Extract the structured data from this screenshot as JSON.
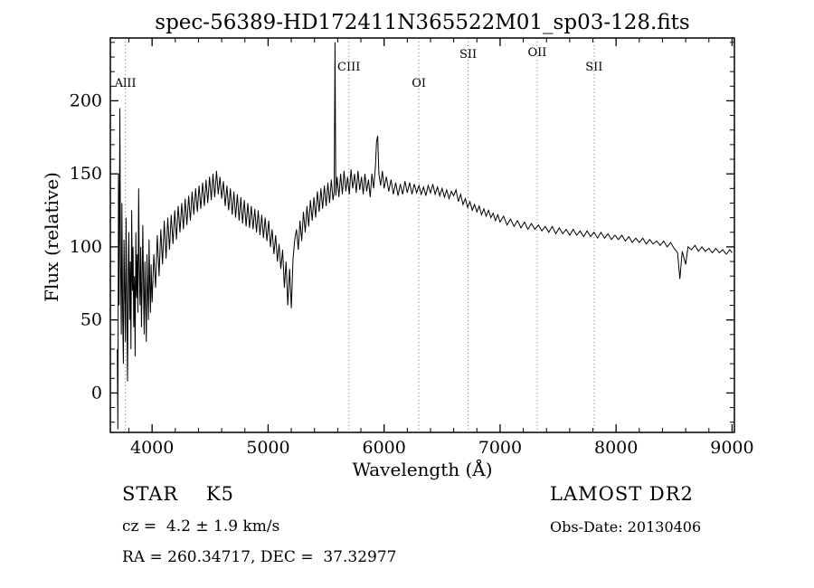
{
  "chart_data": {
    "type": "line",
    "title": "spec-56389-HD172411N365522M01_sp03-128.fits",
    "xlabel": "Wavelength (Å)",
    "ylabel": "Flux (relative)",
    "xlim": [
      3640,
      9020
    ],
    "ylim": [
      -27,
      243
    ],
    "xticks": [
      4000,
      5000,
      6000,
      7000,
      8000,
      9000
    ],
    "yticks": [
      0,
      50,
      100,
      150,
      200
    ],
    "grid": false,
    "legend": "none",
    "line_color": "#000000",
    "marker_line_style": "dotted",
    "markers": [
      {
        "label": "AlII",
        "wavelength": 3770,
        "label_y": 96
      },
      {
        "label": "CIII",
        "wavelength": 5696,
        "label_y": 78
      },
      {
        "label": "OI",
        "wavelength": 6300,
        "label_y": 96
      },
      {
        "label": "SII",
        "wavelength": 6724,
        "label_y": 64
      },
      {
        "label": "OII",
        "wavelength": 7320,
        "label_y": 62
      },
      {
        "label": "SII",
        "wavelength": 7810,
        "label_y": 78
      }
    ],
    "points": [
      [
        3700,
        30
      ],
      [
        3705,
        -25
      ],
      [
        3710,
        150
      ],
      [
        3716,
        60
      ],
      [
        3722,
        195
      ],
      [
        3728,
        90
      ],
      [
        3734,
        40
      ],
      [
        3740,
        130
      ],
      [
        3746,
        55
      ],
      [
        3752,
        20
      ],
      [
        3758,
        105
      ],
      [
        3764,
        70
      ],
      [
        3770,
        35
      ],
      [
        3776,
        120
      ],
      [
        3782,
        60
      ],
      [
        3788,
        8
      ],
      [
        3794,
        85
      ],
      [
        3800,
        110
      ],
      [
        3806,
        50
      ],
      [
        3812,
        90
      ],
      [
        3818,
        30
      ],
      [
        3824,
        125
      ],
      [
        3830,
        70
      ],
      [
        3836,
        100
      ],
      [
        3842,
        45
      ],
      [
        3848,
        80
      ],
      [
        3854,
        25
      ],
      [
        3860,
        110
      ],
      [
        3866,
        65
      ],
      [
        3872,
        95
      ],
      [
        3878,
        55
      ],
      [
        3884,
        140
      ],
      [
        3890,
        85
      ],
      [
        3896,
        60
      ],
      [
        3902,
        100
      ],
      [
        3908,
        45
      ],
      [
        3914,
        75
      ],
      [
        3920,
        115
      ],
      [
        3926,
        70
      ],
      [
        3932,
        40
      ],
      [
        3938,
        90
      ],
      [
        3944,
        60
      ],
      [
        3950,
        35
      ],
      [
        3956,
        95
      ],
      [
        3962,
        70
      ],
      [
        3968,
        50
      ],
      [
        3974,
        105
      ],
      [
        3980,
        75
      ],
      [
        3986,
        55
      ],
      [
        3992,
        88
      ],
      [
        4000,
        62
      ],
      [
        4015,
        95
      ],
      [
        4030,
        72
      ],
      [
        4045,
        108
      ],
      [
        4060,
        80
      ],
      [
        4075,
        112
      ],
      [
        4090,
        88
      ],
      [
        4105,
        118
      ],
      [
        4120,
        92
      ],
      [
        4135,
        120
      ],
      [
        4150,
        98
      ],
      [
        4165,
        122
      ],
      [
        4180,
        102
      ],
      [
        4195,
        125
      ],
      [
        4210,
        105
      ],
      [
        4225,
        128
      ],
      [
        4240,
        110
      ],
      [
        4255,
        130
      ],
      [
        4270,
        112
      ],
      [
        4285,
        133
      ],
      [
        4300,
        115
      ],
      [
        4315,
        135
      ],
      [
        4330,
        118
      ],
      [
        4345,
        138
      ],
      [
        4360,
        122
      ],
      [
        4375,
        140
      ],
      [
        4390,
        124
      ],
      [
        4405,
        142
      ],
      [
        4420,
        126
      ],
      [
        4435,
        144
      ],
      [
        4450,
        128
      ],
      [
        4465,
        146
      ],
      [
        4480,
        130
      ],
      [
        4495,
        148
      ],
      [
        4510,
        132
      ],
      [
        4525,
        150
      ],
      [
        4540,
        134
      ],
      [
        4555,
        152
      ],
      [
        4570,
        136
      ],
      [
        4585,
        148
      ],
      [
        4600,
        133
      ],
      [
        4615,
        145
      ],
      [
        4630,
        128
      ],
      [
        4645,
        142
      ],
      [
        4660,
        125
      ],
      [
        4675,
        140
      ],
      [
        4690,
        122
      ],
      [
        4705,
        138
      ],
      [
        4720,
        120
      ],
      [
        4735,
        136
      ],
      [
        4750,
        118
      ],
      [
        4765,
        134
      ],
      [
        4780,
        116
      ],
      [
        4795,
        132
      ],
      [
        4810,
        114
      ],
      [
        4825,
        130
      ],
      [
        4840,
        113
      ],
      [
        4855,
        128
      ],
      [
        4870,
        112
      ],
      [
        4885,
        126
      ],
      [
        4900,
        110
      ],
      [
        4915,
        125
      ],
      [
        4930,
        108
      ],
      [
        4945,
        122
      ],
      [
        4960,
        106
      ],
      [
        4975,
        120
      ],
      [
        4990,
        104
      ],
      [
        5005,
        118
      ],
      [
        5020,
        100
      ],
      [
        5035,
        112
      ],
      [
        5050,
        95
      ],
      [
        5065,
        108
      ],
      [
        5080,
        90
      ],
      [
        5095,
        102
      ],
      [
        5110,
        85
      ],
      [
        5125,
        98
      ],
      [
        5140,
        72
      ],
      [
        5155,
        90
      ],
      [
        5170,
        60
      ],
      [
        5185,
        85
      ],
      [
        5200,
        58
      ],
      [
        5215,
        92
      ],
      [
        5230,
        105
      ],
      [
        5245,
        112
      ],
      [
        5260,
        98
      ],
      [
        5275,
        118
      ],
      [
        5290,
        104
      ],
      [
        5305,
        124
      ],
      [
        5320,
        110
      ],
      [
        5335,
        128
      ],
      [
        5350,
        114
      ],
      [
        5365,
        132
      ],
      [
        5380,
        118
      ],
      [
        5395,
        134
      ],
      [
        5410,
        120
      ],
      [
        5425,
        138
      ],
      [
        5440,
        124
      ],
      [
        5455,
        140
      ],
      [
        5470,
        126
      ],
      [
        5485,
        142
      ],
      [
        5500,
        128
      ],
      [
        5515,
        144
      ],
      [
        5530,
        130
      ],
      [
        5545,
        146
      ],
      [
        5560,
        132
      ],
      [
        5570,
        138
      ],
      [
        5577,
        240
      ],
      [
        5584,
        135
      ],
      [
        5595,
        148
      ],
      [
        5610,
        134
      ],
      [
        5625,
        150
      ],
      [
        5640,
        136
      ],
      [
        5655,
        152
      ],
      [
        5670,
        138
      ],
      [
        5685,
        148
      ],
      [
        5700,
        136
      ],
      [
        5715,
        153
      ],
      [
        5730,
        140
      ],
      [
        5745,
        150
      ],
      [
        5760,
        137
      ],
      [
        5775,
        152
      ],
      [
        5790,
        139
      ],
      [
        5805,
        148
      ],
      [
        5820,
        136
      ],
      [
        5835,
        150
      ],
      [
        5850,
        138
      ],
      [
        5865,
        146
      ],
      [
        5880,
        134
      ],
      [
        5895,
        150
      ],
      [
        5910,
        140
      ],
      [
        5925,
        155
      ],
      [
        5935,
        172
      ],
      [
        5945,
        176
      ],
      [
        5955,
        150
      ],
      [
        5970,
        142
      ],
      [
        5985,
        152
      ],
      [
        6000,
        140
      ],
      [
        6020,
        148
      ],
      [
        6040,
        138
      ],
      [
        6060,
        146
      ],
      [
        6080,
        136
      ],
      [
        6100,
        144
      ],
      [
        6120,
        135
      ],
      [
        6140,
        143
      ],
      [
        6160,
        136
      ],
      [
        6180,
        145
      ],
      [
        6200,
        137
      ],
      [
        6220,
        144
      ],
      [
        6240,
        136
      ],
      [
        6260,
        143
      ],
      [
        6280,
        137
      ],
      [
        6300,
        142
      ],
      [
        6320,
        136
      ],
      [
        6340,
        141
      ],
      [
        6360,
        135
      ],
      [
        6380,
        142
      ],
      [
        6400,
        137
      ],
      [
        6420,
        143
      ],
      [
        6440,
        136
      ],
      [
        6460,
        141
      ],
      [
        6480,
        135
      ],
      [
        6500,
        140
      ],
      [
        6520,
        134
      ],
      [
        6540,
        139
      ],
      [
        6560,
        133
      ],
      [
        6580,
        138
      ],
      [
        6600,
        135
      ],
      [
        6620,
        139
      ],
      [
        6640,
        131
      ],
      [
        6660,
        136
      ],
      [
        6680,
        129
      ],
      [
        6700,
        133
      ],
      [
        6720,
        127
      ],
      [
        6740,
        131
      ],
      [
        6760,
        125
      ],
      [
        6780,
        129
      ],
      [
        6800,
        124
      ],
      [
        6820,
        128
      ],
      [
        6840,
        122
      ],
      [
        6860,
        126
      ],
      [
        6880,
        121
      ],
      [
        6900,
        125
      ],
      [
        6920,
        120
      ],
      [
        6940,
        123
      ],
      [
        6960,
        118
      ],
      [
        6980,
        122
      ],
      [
        7000,
        117
      ],
      [
        7030,
        121
      ],
      [
        7060,
        115
      ],
      [
        7090,
        119
      ],
      [
        7120,
        114
      ],
      [
        7150,
        118
      ],
      [
        7180,
        113
      ],
      [
        7210,
        117
      ],
      [
        7240,
        112
      ],
      [
        7270,
        116
      ],
      [
        7300,
        112
      ],
      [
        7330,
        115
      ],
      [
        7360,
        111
      ],
      [
        7390,
        114
      ],
      [
        7420,
        110
      ],
      [
        7450,
        114
      ],
      [
        7480,
        109
      ],
      [
        7510,
        113
      ],
      [
        7540,
        109
      ],
      [
        7570,
        112
      ],
      [
        7600,
        108
      ],
      [
        7630,
        112
      ],
      [
        7660,
        108
      ],
      [
        7690,
        111
      ],
      [
        7720,
        107
      ],
      [
        7750,
        111
      ],
      [
        7780,
        107
      ],
      [
        7810,
        110
      ],
      [
        7840,
        106
      ],
      [
        7870,
        110
      ],
      [
        7900,
        106
      ],
      [
        7930,
        109
      ],
      [
        7960,
        105
      ],
      [
        7990,
        108
      ],
      [
        8020,
        105
      ],
      [
        8050,
        108
      ],
      [
        8080,
        104
      ],
      [
        8110,
        107
      ],
      [
        8140,
        103
      ],
      [
        8170,
        106
      ],
      [
        8200,
        103
      ],
      [
        8230,
        106
      ],
      [
        8260,
        102
      ],
      [
        8290,
        105
      ],
      [
        8320,
        102
      ],
      [
        8350,
        104
      ],
      [
        8380,
        101
      ],
      [
        8410,
        104
      ],
      [
        8440,
        100
      ],
      [
        8470,
        103
      ],
      [
        8500,
        99
      ],
      [
        8530,
        96
      ],
      [
        8550,
        78
      ],
      [
        8570,
        97
      ],
      [
        8600,
        88
      ],
      [
        8620,
        100
      ],
      [
        8650,
        98
      ],
      [
        8680,
        101
      ],
      [
        8710,
        97
      ],
      [
        8740,
        100
      ],
      [
        8770,
        97
      ],
      [
        8800,
        99
      ],
      [
        8830,
        96
      ],
      [
        8860,
        99
      ],
      [
        8890,
        96
      ],
      [
        8920,
        98
      ],
      [
        8950,
        95
      ],
      [
        8980,
        98
      ],
      [
        9000,
        96
      ]
    ]
  },
  "annotations": {
    "class_line": "STAR    K5",
    "survey": "LAMOST DR2",
    "cz_line": "cz =  4.2 ± 1.9 km/s",
    "obs_date": "Obs-Date: 20130406",
    "radec_line": "RA = 260.34717, DEC =  37.32977"
  }
}
